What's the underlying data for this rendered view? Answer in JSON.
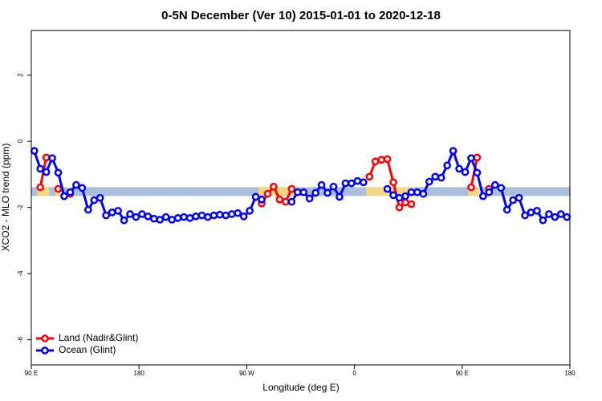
{
  "chart_data": {
    "type": "line",
    "title": "0-5N December (Ver 10)   2015-01-01 to 2020-12-18",
    "x_label": "Longitude (deg E)",
    "y_label": "XCO2 - MLO trend (ppm)",
    "xlim": [
      90,
      540
    ],
    "ylim": [
      -6.76,
      3.35
    ],
    "xticks": [
      {
        "value": 90,
        "label": "90 E"
      },
      180,
      {
        "value": 270,
        "label": "90 W"
      },
      {
        "value": 360,
        "label": "0"
      },
      {
        "value": 450,
        "label": "90 E"
      },
      {
        "value": 540,
        "label": "180"
      }
    ],
    "yticks": [
      -6,
      -4,
      -2,
      0,
      2
    ],
    "legend": "bottom-left",
    "band": {
      "value": -1.52,
      "color": "#a9bfdc",
      "land_color": "#f7d781"
    },
    "series": [
      {
        "name": "Land (Nadir&Glint)",
        "color": "#ff0000",
        "x": [
          97.5,
          102.5,
          107.5,
          112.5,
          117.5,
          122.5,
          277.5,
          282.5,
          287.5,
          292.5,
          297.5,
          302.5,
          307.5,
          367.5,
          372.5,
          377.5,
          382.5,
          387.5,
          392.5,
          397.5,
          402.5,
          407.5,
          452.5,
          457.5,
          462.5,
          467.5,
          472.5
        ],
        "values": [
          -1.39,
          -0.49,
          null,
          -1.44,
          null,
          -1.59,
          null,
          -1.88,
          -1.59,
          -1.37,
          -1.76,
          -1.83,
          -1.44,
          null,
          -1.07,
          -0.61,
          -0.56,
          -0.54,
          -1.24,
          -2.0,
          -1.85,
          -1.9,
          null,
          -1.39,
          -0.49,
          null,
          -1.44
        ]
      },
      {
        "name": "Ocean (Glint)",
        "color": "#0000ff",
        "x": [
          92.5,
          97.5,
          102.5,
          107.5,
          112.5,
          117.5,
          122.5,
          127.5,
          132.5,
          137.5,
          142.5,
          147.5,
          152.5,
          157.5,
          162.5,
          167.5,
          172.5,
          177.5,
          182.5,
          187.5,
          192.5,
          197.5,
          202.5,
          207.5,
          212.5,
          217.5,
          222.5,
          227.5,
          232.5,
          237.5,
          242.5,
          247.5,
          252.5,
          257.5,
          262.5,
          267.5,
          272.5,
          277.5,
          282.5,
          287.5,
          307.5,
          312.5,
          317.5,
          322.5,
          327.5,
          332.5,
          337.5,
          342.5,
          347.5,
          352.5,
          357.5,
          362.5,
          367.5,
          372.5,
          387.5,
          392.5,
          397.5,
          402.5,
          407.5,
          412.5,
          417.5,
          422.5,
          427.5,
          432.5,
          437.5,
          442.5,
          447.5,
          452.5,
          457.5,
          462.5,
          467.5,
          472.5,
          477.5,
          482.5,
          487.5,
          492.5,
          497.5,
          502.5,
          507.5,
          512.5,
          517.5,
          522.5,
          527.5,
          532.5,
          537.5
        ],
        "values": [
          -0.29,
          -0.83,
          -0.93,
          -0.51,
          -0.95,
          -1.66,
          -1.54,
          -1.32,
          -1.41,
          -2.07,
          -1.78,
          -1.71,
          -2.24,
          -2.15,
          -2.1,
          -2.39,
          -2.2,
          -2.29,
          -2.2,
          -2.27,
          -2.34,
          -2.37,
          -2.29,
          -2.37,
          -2.32,
          -2.29,
          -2.32,
          -2.27,
          -2.24,
          -2.29,
          -2.24,
          -2.22,
          -2.24,
          -2.2,
          -2.17,
          -2.27,
          -2.1,
          -1.68,
          -1.76,
          null,
          -1.83,
          -1.54,
          -1.54,
          -1.73,
          -1.56,
          -1.32,
          -1.56,
          -1.37,
          -1.68,
          -1.27,
          -1.27,
          -1.2,
          -1.24,
          null,
          -1.44,
          -1.63,
          -1.71,
          -1.66,
          -1.54,
          -1.54,
          -1.59,
          -1.22,
          -1.07,
          -1.1,
          -0.73,
          -0.29,
          -0.83,
          -0.93,
          -0.51,
          -0.95,
          -1.66,
          -1.54,
          -1.32,
          -1.41,
          -2.07,
          -1.78,
          -1.71,
          -2.24,
          -2.15,
          -2.1,
          -2.39,
          -2.2,
          -2.29,
          -2.2,
          -2.29
        ]
      }
    ]
  }
}
